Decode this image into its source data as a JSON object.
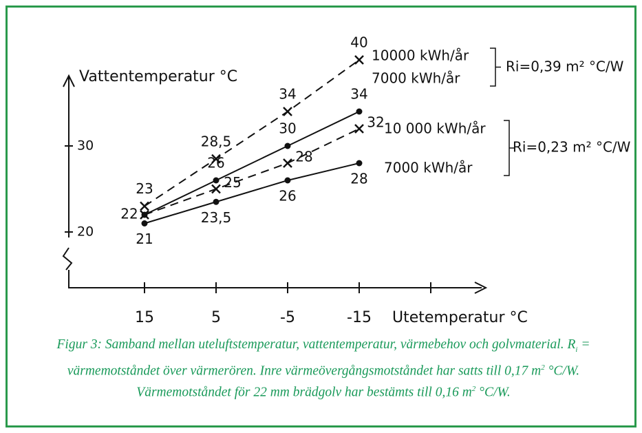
{
  "chart_data": {
    "type": "line",
    "y_label": "Vattentemperatur °C",
    "x_label": "Utetemperatur °C",
    "categories": [
      "15",
      "5",
      "-5",
      "-15",
      null
    ],
    "ylim": [
      19,
      41
    ],
    "yticks": [
      20,
      30
    ],
    "series": [
      {
        "name": "10000 kWh/år",
        "color": "#111111",
        "dashed": true,
        "marker": "x",
        "values": [
          23,
          28.5,
          34,
          40,
          null
        ],
        "value_labels": [
          "23",
          "28,5",
          "34",
          "40",
          null
        ]
      },
      {
        "name": "7000 kWh/år",
        "color": "#111111",
        "dashed": false,
        "marker": "dot",
        "values": [
          22,
          26,
          30,
          34,
          null
        ],
        "value_labels": [
          "22",
          "26",
          "30",
          "34",
          null
        ]
      },
      {
        "name": "10 000 kWh/år",
        "color": "#111111",
        "dashed": true,
        "marker": "x",
        "values": [
          22,
          25,
          28,
          32,
          null
        ],
        "value_labels": [
          null,
          "25",
          "28",
          "32",
          null
        ]
      },
      {
        "name": "7000 kWh/år",
        "color": "#111111",
        "dashed": false,
        "marker": "dot",
        "values": [
          21,
          23.5,
          26,
          28,
          null
        ],
        "value_labels": [
          "21",
          "23,5",
          "26",
          "28",
          null
        ]
      }
    ],
    "annotations": [
      "Ri=0,39 m² °C/W",
      "Ri=0,23 m² °C/W"
    ],
    "caption": [
      "Figur 3: Samband mellan uteluftstemperatur, vattentemperatur, värmebehov och golvmaterial. R",
      "i",
      " = värmemotståndet över värmerören. Inre värmeövergångsmotståndet har satts till 0,17 m",
      "2",
      " °C/W. Värmemotståndet för 22 mm brädgolv har bestämts till 0,16 m",
      "2",
      " °C/W."
    ]
  }
}
